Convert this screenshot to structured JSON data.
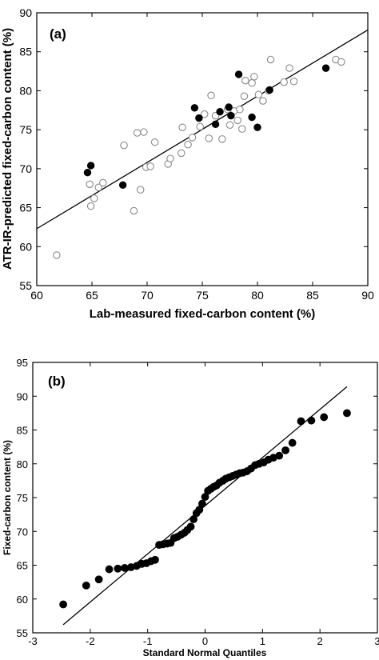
{
  "chart_data": [
    {
      "type": "scatter",
      "panel_label": "(a)",
      "xlabel": "Lab-measured fixed-carbon content (%)",
      "ylabel": "ATR-IR-predicted fixed-carbon content (%)",
      "xlim": [
        60,
        90
      ],
      "ylim": [
        55,
        90
      ],
      "xticks": [
        "60",
        "65",
        "70",
        "75",
        "80",
        "85",
        "90"
      ],
      "yticks": [
        "55",
        "60",
        "65",
        "70",
        "75",
        "80",
        "85",
        "90"
      ],
      "grid": false,
      "series": [
        {
          "marker": "open-circle",
          "points": [
            [
              61.8,
              58.9
            ],
            [
              64.8,
              68.0
            ],
            [
              64.9,
              65.2
            ],
            [
              65.2,
              66.2
            ],
            [
              65.6,
              67.6
            ],
            [
              66.0,
              68.2
            ],
            [
              67.9,
              73.0
            ],
            [
              68.8,
              64.6
            ],
            [
              69.1,
              74.6
            ],
            [
              69.4,
              67.3
            ],
            [
              69.7,
              74.7
            ],
            [
              69.9,
              70.2
            ],
            [
              70.3,
              70.3
            ],
            [
              70.7,
              73.4
            ],
            [
              71.9,
              70.6
            ],
            [
              72.1,
              71.3
            ],
            [
              73.1,
              72.0
            ],
            [
              73.2,
              75.3
            ],
            [
              73.7,
              73.1
            ],
            [
              74.1,
              74.0
            ],
            [
              74.8,
              75.4
            ],
            [
              75.2,
              77.0
            ],
            [
              75.6,
              73.9
            ],
            [
              75.8,
              79.4
            ],
            [
              76.2,
              76.8
            ],
            [
              76.8,
              73.8
            ],
            [
              77.3,
              77.6
            ],
            [
              77.5,
              75.6
            ],
            [
              77.9,
              77.4
            ],
            [
              78.2,
              76.2
            ],
            [
              78.4,
              77.6
            ],
            [
              78.6,
              75.1
            ],
            [
              78.8,
              79.3
            ],
            [
              78.9,
              81.3
            ],
            [
              79.5,
              81.0
            ],
            [
              79.7,
              81.8
            ],
            [
              80.1,
              79.5
            ],
            [
              80.5,
              78.7
            ],
            [
              81.0,
              80.0
            ],
            [
              81.2,
              84.0
            ],
            [
              82.4,
              81.1
            ],
            [
              82.9,
              82.9
            ],
            [
              83.3,
              81.2
            ],
            [
              86.2,
              82.9
            ],
            [
              87.1,
              84.0
            ],
            [
              87.6,
              83.7
            ]
          ]
        },
        {
          "marker": "filled-circle",
          "points": [
            [
              64.6,
              69.5
            ],
            [
              64.9,
              70.4
            ],
            [
              67.8,
              67.9
            ],
            [
              74.3,
              77.8
            ],
            [
              74.7,
              76.5
            ],
            [
              76.2,
              75.7
            ],
            [
              76.6,
              77.3
            ],
            [
              77.4,
              77.9
            ],
            [
              77.6,
              76.8
            ],
            [
              78.3,
              82.1
            ],
            [
              79.5,
              76.6
            ],
            [
              80.0,
              75.3
            ],
            [
              81.1,
              80.1
            ],
            [
              86.2,
              82.9
            ]
          ]
        }
      ],
      "fit_line": [
        [
          60,
          62.3
        ],
        [
          90,
          87.8
        ]
      ]
    },
    {
      "type": "scatter",
      "panel_label": "(b)",
      "xlabel": "Standard Normal Quantiles",
      "ylabel": "Fixed-carbon content (%)",
      "xlim": [
        -3,
        3
      ],
      "ylim": [
        55,
        95
      ],
      "xticks": [
        "-3",
        "-2",
        "-1",
        "0",
        "1",
        "2",
        "3"
      ],
      "yticks": [
        "55",
        "60",
        "65",
        "70",
        "75",
        "80",
        "85",
        "90",
        "95"
      ],
      "grid": false,
      "series": [
        {
          "marker": "filled-circle",
          "points": [
            [
              -2.47,
              59.2
            ],
            [
              -2.07,
              62.0
            ],
            [
              -1.85,
              62.9
            ],
            [
              -1.67,
              64.4
            ],
            [
              -1.52,
              64.5
            ],
            [
              -1.4,
              64.6
            ],
            [
              -1.29,
              64.7
            ],
            [
              -1.19,
              64.9
            ],
            [
              -1.1,
              65.2
            ],
            [
              -1.02,
              65.3
            ],
            [
              -0.94,
              65.6
            ],
            [
              -0.87,
              65.8
            ],
            [
              -0.8,
              68.0
            ],
            [
              -0.73,
              68.1
            ],
            [
              -0.66,
              68.2
            ],
            [
              -0.6,
              68.3
            ],
            [
              -0.54,
              69.0
            ],
            [
              -0.48,
              69.2
            ],
            [
              -0.42,
              69.5
            ],
            [
              -0.36,
              69.8
            ],
            [
              -0.31,
              70.2
            ],
            [
              -0.25,
              70.7
            ],
            [
              -0.2,
              71.8
            ],
            [
              -0.15,
              72.7
            ],
            [
              -0.1,
              73.2
            ],
            [
              -0.05,
              74.1
            ],
            [
              0.0,
              75.1
            ],
            [
              0.05,
              76.0
            ],
            [
              0.1,
              76.3
            ],
            [
              0.15,
              76.6
            ],
            [
              0.2,
              76.8
            ],
            [
              0.25,
              77.2
            ],
            [
              0.31,
              77.5
            ],
            [
              0.36,
              77.8
            ],
            [
              0.42,
              78.0
            ],
            [
              0.48,
              78.2
            ],
            [
              0.54,
              78.4
            ],
            [
              0.6,
              78.6
            ],
            [
              0.66,
              78.7
            ],
            [
              0.73,
              78.9
            ],
            [
              0.8,
              79.3
            ],
            [
              0.87,
              79.8
            ],
            [
              0.94,
              80.0
            ],
            [
              1.02,
              80.2
            ],
            [
              1.1,
              80.6
            ],
            [
              1.19,
              80.9
            ],
            [
              1.29,
              81.2
            ],
            [
              1.4,
              82.0
            ],
            [
              1.52,
              83.1
            ],
            [
              1.67,
              86.3
            ],
            [
              1.85,
              86.4
            ],
            [
              2.07,
              86.9
            ],
            [
              2.47,
              87.5
            ]
          ]
        }
      ],
      "fit_line": [
        [
          -2.47,
          56.2
        ],
        [
          2.47,
          91.4
        ]
      ]
    }
  ]
}
